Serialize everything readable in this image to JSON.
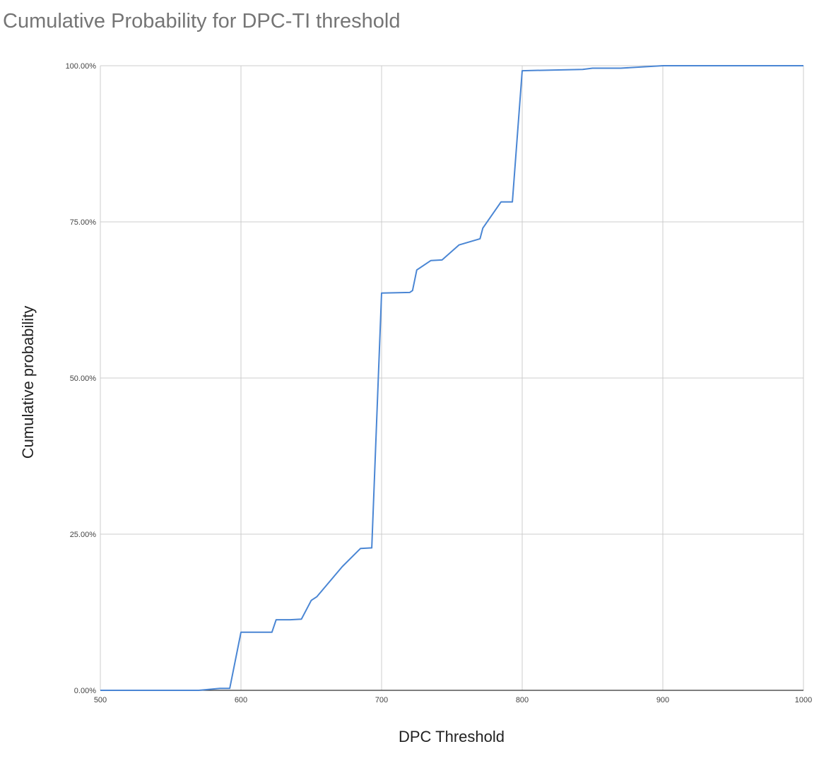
{
  "chart_data": {
    "type": "line",
    "title": "Cumulative Probability for DPC-TI threshold",
    "xlabel": "DPC Threshold",
    "ylabel": "Cumulative probability",
    "xlim": [
      500,
      1000
    ],
    "ylim": [
      0,
      1
    ],
    "grid": true,
    "legend": "none",
    "x_ticks": [
      "500",
      "600",
      "700",
      "800",
      "900",
      "1000"
    ],
    "x_tick_values": [
      500,
      600,
      700,
      800,
      900,
      1000
    ],
    "y_ticks": [
      "0.00%",
      "25.00%",
      "50.00%",
      "75.00%",
      "100.00%"
    ],
    "y_tick_values": [
      0,
      0.25,
      0.5,
      0.75,
      1.0
    ],
    "line_color": "#4a86d4",
    "series": [
      {
        "x": [
          500,
          570,
          585,
          592,
          600,
          622,
          625,
          635,
          643,
          650,
          654,
          672,
          685,
          693,
          700,
          720,
          722,
          725,
          735,
          743,
          755,
          770,
          772,
          785,
          793,
          800,
          820,
          843,
          850,
          870,
          900,
          1000
        ],
        "y": [
          0,
          0,
          0.003,
          0.003,
          0.093,
          0.093,
          0.113,
          0.113,
          0.114,
          0.144,
          0.15,
          0.198,
          0.227,
          0.228,
          0.636,
          0.637,
          0.64,
          0.673,
          0.688,
          0.689,
          0.713,
          0.723,
          0.74,
          0.782,
          0.782,
          0.992,
          0.993,
          0.994,
          0.996,
          0.996,
          1.0,
          1.0
        ]
      }
    ]
  }
}
